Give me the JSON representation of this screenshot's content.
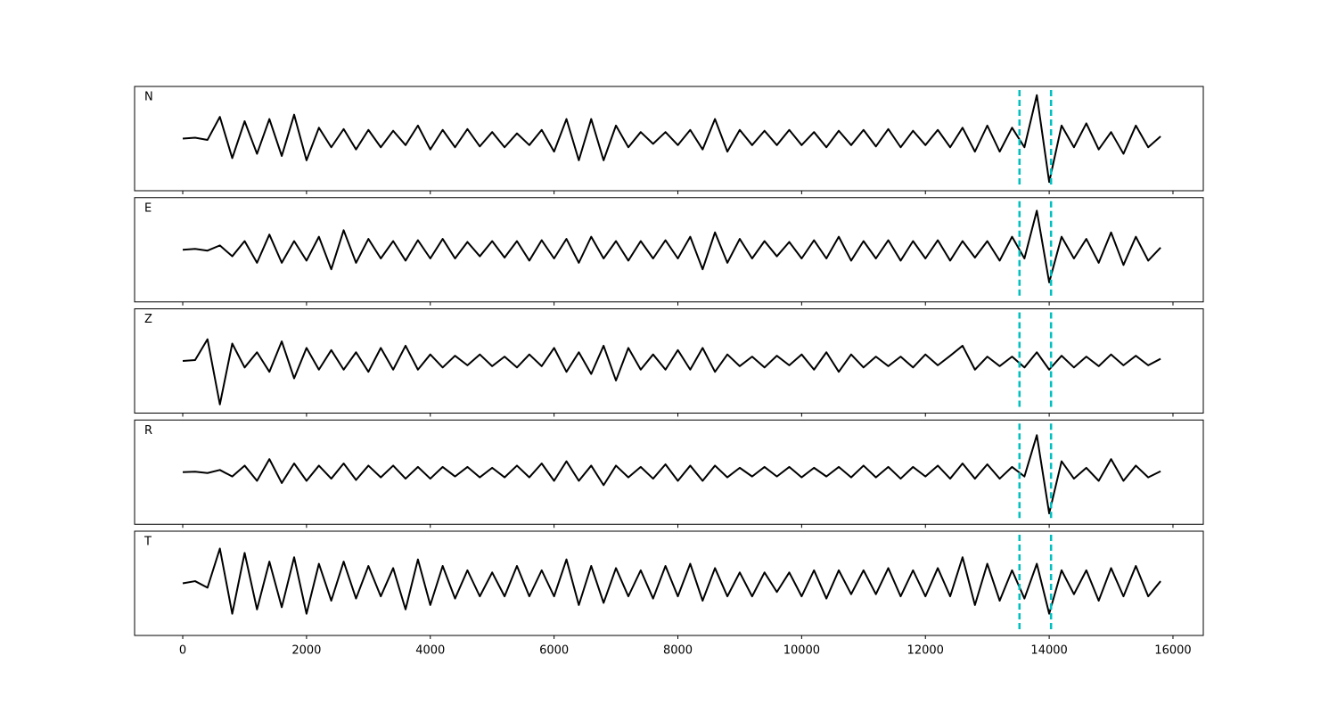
{
  "chart_data": {
    "type": "line",
    "x": [
      0,
      200,
      400,
      600,
      800,
      1000,
      1200,
      1400,
      1600,
      1800,
      2000,
      2200,
      2400,
      2600,
      2800,
      3000,
      3200,
      3400,
      3600,
      3800,
      4000,
      4200,
      4400,
      4600,
      4800,
      5000,
      5200,
      5400,
      5600,
      5800,
      6000,
      6200,
      6400,
      6600,
      6800,
      7000,
      7200,
      7400,
      7600,
      7800,
      8000,
      8200,
      8400,
      8600,
      8800,
      9000,
      9200,
      9400,
      9600,
      9800,
      10000,
      10200,
      10400,
      10600,
      10800,
      11000,
      11200,
      11400,
      11600,
      11800,
      12000,
      12200,
      12400,
      12600,
      12800,
      13000,
      13200,
      13400,
      13600,
      13800,
      14000,
      14200,
      14400,
      14600,
      14800,
      15000,
      15200,
      15400,
      15600,
      15800
    ],
    "xlim": [
      -778,
      16490
    ],
    "xticks": [
      0,
      2000,
      4000,
      6000,
      8000,
      10000,
      12000,
      14000,
      16000
    ],
    "ylim": [
      -1.2,
      1.2
    ],
    "color": "#000000",
    "vlines": [
      13520,
      14030
    ],
    "vline_color": "#00bfbf",
    "series": [
      {
        "name": "N",
        "values": [
          0,
          0.02,
          -0.03,
          0.5,
          -0.45,
          0.4,
          -0.35,
          0.45,
          -0.4,
          0.55,
          -0.5,
          0.25,
          -0.2,
          0.22,
          -0.25,
          0.2,
          -0.2,
          0.18,
          -0.15,
          0.3,
          -0.25,
          0.2,
          -0.2,
          0.22,
          -0.18,
          0.15,
          -0.2,
          0.12,
          -0.15,
          0.2,
          -0.3,
          0.45,
          -0.5,
          0.45,
          -0.5,
          0.3,
          -0.2,
          0.15,
          -0.12,
          0.15,
          -0.15,
          0.2,
          -0.25,
          0.45,
          -0.3,
          0.2,
          -0.15,
          0.18,
          -0.15,
          0.2,
          -0.15,
          0.15,
          -0.2,
          0.18,
          -0.15,
          0.2,
          -0.18,
          0.22,
          -0.2,
          0.18,
          -0.15,
          0.2,
          -0.2,
          0.25,
          -0.3,
          0.3,
          -0.3,
          0.25,
          -0.2,
          1.0,
          -1.0,
          0.3,
          -0.2,
          0.35,
          -0.25,
          0.15,
          -0.35,
          0.3,
          -0.2,
          0.05
        ]
      },
      {
        "name": "E",
        "values": [
          0,
          0.02,
          -0.02,
          0.1,
          -0.15,
          0.2,
          -0.3,
          0.35,
          -0.3,
          0.2,
          -0.25,
          0.3,
          -0.45,
          0.45,
          -0.3,
          0.25,
          -0.2,
          0.2,
          -0.25,
          0.22,
          -0.2,
          0.25,
          -0.2,
          0.18,
          -0.15,
          0.2,
          -0.18,
          0.2,
          -0.25,
          0.22,
          -0.2,
          0.25,
          -0.3,
          0.3,
          -0.2,
          0.2,
          -0.25,
          0.2,
          -0.2,
          0.22,
          -0.2,
          0.3,
          -0.45,
          0.4,
          -0.3,
          0.25,
          -0.2,
          0.2,
          -0.15,
          0.18,
          -0.2,
          0.22,
          -0.2,
          0.3,
          -0.25,
          0.2,
          -0.2,
          0.22,
          -0.25,
          0.2,
          -0.2,
          0.22,
          -0.25,
          0.2,
          -0.18,
          0.2,
          -0.25,
          0.3,
          -0.2,
          0.9,
          -0.75,
          0.3,
          -0.2,
          0.25,
          -0.3,
          0.4,
          -0.35,
          0.3,
          -0.25,
          0.05
        ]
      },
      {
        "name": "Z",
        "values": [
          0,
          0.02,
          0.5,
          -1.0,
          0.4,
          -0.15,
          0.2,
          -0.25,
          0.45,
          -0.4,
          0.3,
          -0.2,
          0.25,
          -0.2,
          0.2,
          -0.25,
          0.3,
          -0.2,
          0.35,
          -0.2,
          0.15,
          -0.15,
          0.12,
          -0.1,
          0.15,
          -0.12,
          0.1,
          -0.15,
          0.15,
          -0.12,
          0.3,
          -0.25,
          0.2,
          -0.3,
          0.35,
          -0.45,
          0.3,
          -0.2,
          0.15,
          -0.2,
          0.25,
          -0.2,
          0.3,
          -0.25,
          0.15,
          -0.12,
          0.1,
          -0.15,
          0.12,
          -0.1,
          0.15,
          -0.2,
          0.2,
          -0.25,
          0.15,
          -0.15,
          0.1,
          -0.12,
          0.1,
          -0.15,
          0.15,
          -0.1,
          0.12,
          0.35,
          -0.2,
          0.1,
          -0.12,
          0.1,
          -0.15,
          0.2,
          -0.2,
          0.12,
          -0.15,
          0.1,
          -0.12,
          0.15,
          -0.1,
          0.12,
          -0.1,
          0.05
        ]
      },
      {
        "name": "R",
        "values": [
          0,
          0.01,
          -0.02,
          0.05,
          -0.1,
          0.15,
          -0.2,
          0.3,
          -0.25,
          0.2,
          -0.2,
          0.15,
          -0.15,
          0.2,
          -0.18,
          0.15,
          -0.12,
          0.15,
          -0.15,
          0.12,
          -0.15,
          0.12,
          -0.1,
          0.12,
          -0.12,
          0.1,
          -0.12,
          0.15,
          -0.12,
          0.2,
          -0.2,
          0.25,
          -0.2,
          0.15,
          -0.3,
          0.15,
          -0.12,
          0.12,
          -0.15,
          0.18,
          -0.2,
          0.15,
          -0.2,
          0.15,
          -0.12,
          0.1,
          -0.1,
          0.12,
          -0.1,
          0.12,
          -0.12,
          0.1,
          -0.1,
          0.12,
          -0.12,
          0.15,
          -0.12,
          0.12,
          -0.15,
          0.12,
          -0.1,
          0.15,
          -0.15,
          0.2,
          -0.15,
          0.18,
          -0.15,
          0.12,
          -0.1,
          0.85,
          -0.95,
          0.25,
          -0.15,
          0.1,
          -0.2,
          0.3,
          -0.2,
          0.15,
          -0.12,
          0.02
        ]
      },
      {
        "name": "T",
        "values": [
          0,
          0.05,
          -0.1,
          0.8,
          -0.7,
          0.7,
          -0.6,
          0.5,
          -0.55,
          0.6,
          -0.7,
          0.45,
          -0.4,
          0.5,
          -0.35,
          0.4,
          -0.3,
          0.35,
          -0.6,
          0.55,
          -0.5,
          0.4,
          -0.35,
          0.3,
          -0.3,
          0.25,
          -0.3,
          0.4,
          -0.3,
          0.3,
          -0.3,
          0.55,
          -0.5,
          0.4,
          -0.45,
          0.35,
          -0.3,
          0.3,
          -0.35,
          0.4,
          -0.3,
          0.45,
          -0.4,
          0.35,
          -0.3,
          0.25,
          -0.3,
          0.25,
          -0.2,
          0.25,
          -0.3,
          0.3,
          -0.35,
          0.3,
          -0.25,
          0.3,
          -0.25,
          0.35,
          -0.3,
          0.3,
          -0.3,
          0.35,
          -0.3,
          0.6,
          -0.5,
          0.45,
          -0.4,
          0.3,
          -0.35,
          0.45,
          -0.7,
          0.3,
          -0.25,
          0.3,
          -0.4,
          0.35,
          -0.3,
          0.4,
          -0.3,
          0.05
        ]
      }
    ]
  }
}
